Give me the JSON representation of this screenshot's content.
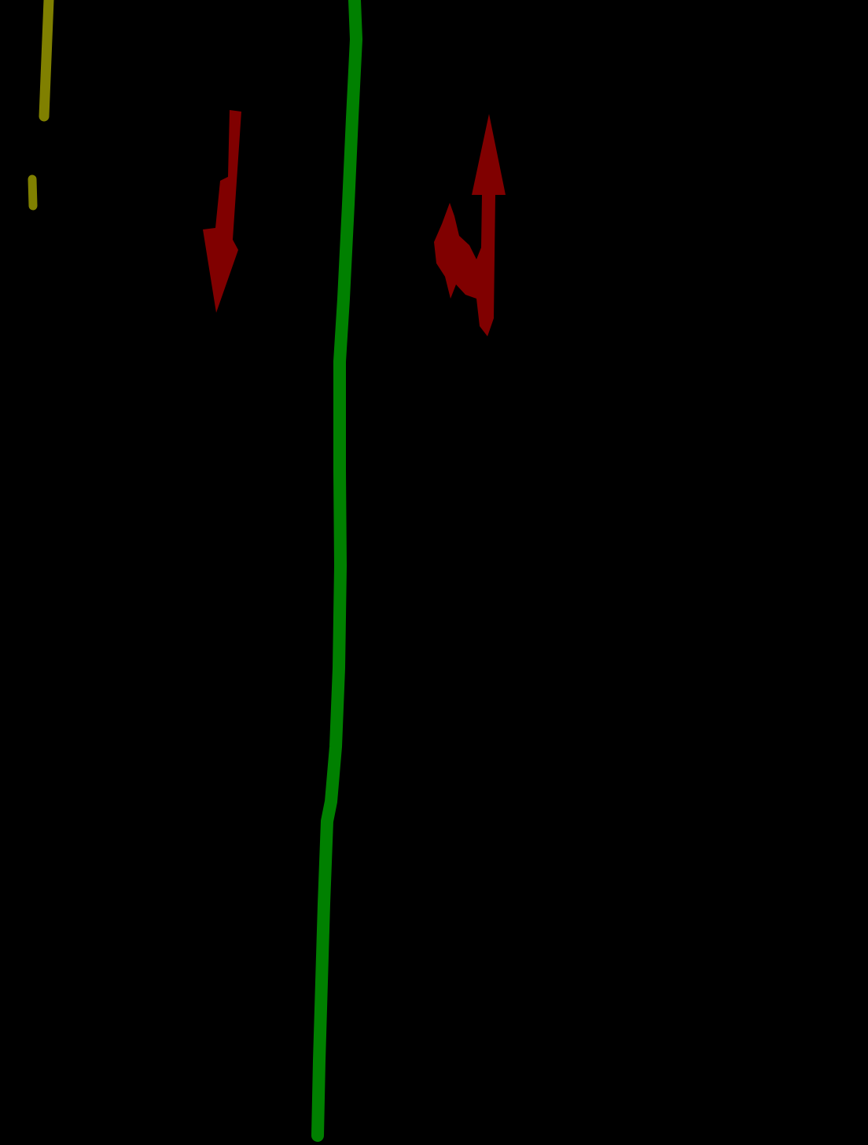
{
  "canvas": {
    "background_color": "#000000"
  },
  "classes": {
    "yellow_dashed_marking": {
      "color": "#808000",
      "kind": "dashed lane line"
    },
    "green_solid_marking": {
      "color": "#008000",
      "kind": "solid lane line"
    },
    "red_arrow_marking": {
      "color": "#800000",
      "kind": "road arrow"
    }
  },
  "arrows": [
    {
      "name": "down-arrow",
      "direction": "straight-down"
    },
    {
      "name": "up-left-arrow",
      "direction": "straight-up-and-left"
    }
  ]
}
